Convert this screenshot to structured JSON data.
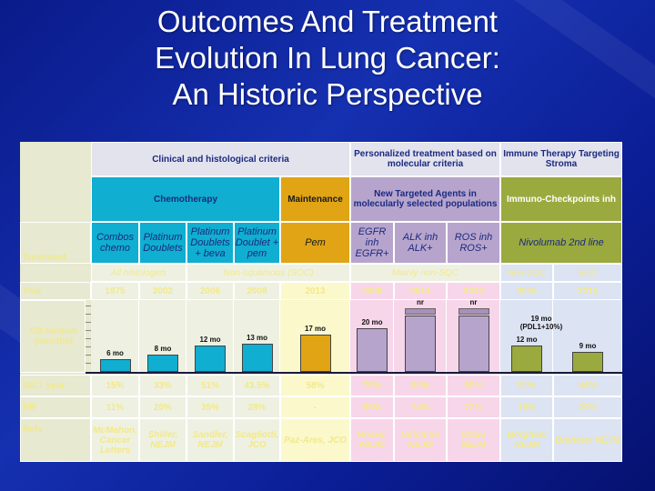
{
  "title": {
    "line1": "Outcomes And Treatment",
    "line2": "Evolution In Lung Cancer:",
    "line3": "An Historic Perspective"
  },
  "header": {
    "clinical": "Clinical and histological criteria",
    "personalized": "Personalized treatment based on molecular criteria",
    "immune": "Immune Therapy Targeting Stroma",
    "chemo": "Chemotherapy",
    "maintenance": "Maintenance",
    "targeted": "New Targeted Agents in molecularly selected populations",
    "checkpoint": "Immuno-Checkpoints inh"
  },
  "rows": {
    "treatment_label": "Treatment",
    "year_label": "Year",
    "os_label": "OS median (months)",
    "os1_label": "OS 1 year",
    "rr_label": "RR",
    "refs_label": "Refs"
  },
  "treatments": [
    "Combos chemo",
    "Platinum Doublets",
    "Platinum Doublets + beva",
    "Platinum Doublet + pem",
    "Pem",
    "EGFR inh EGFR+",
    "ALK inh ALK+",
    "ROS inh ROS+",
    "Nivolumab 2nd line"
  ],
  "nivolumab_sup": "nd",
  "histology": {
    "all": "All histologies",
    "nonsq": "Non-squamous (SOC)",
    "mainly": "Mainly non-SQC",
    "nonsqc": "Non-SQC",
    "sqc": "SQC"
  },
  "years": [
    "1975",
    "2002",
    "2006",
    "2008",
    "2013",
    "2009",
    "2014",
    "2014",
    "2015",
    "2015"
  ],
  "os_median": [
    "6 mo",
    "8 mo",
    "12 mo",
    "13 mo",
    "17 mo",
    "20 mo",
    "nr",
    "nr",
    "12 mo",
    "9 mo"
  ],
  "nivo_note": "19 mo (PDL1+10%)",
  "os1": [
    "15%",
    "33%",
    "51%",
    "43.5%",
    "58%",
    "75%",
    "60%",
    "85%",
    "51%",
    "44%"
  ],
  "rr": [
    "11%",
    "20%",
    "35%",
    "28%",
    "-",
    "58%",
    "74%",
    "72%",
    "19%",
    "20%"
  ],
  "refs": [
    "McMahon, Cancer Letters",
    "Shiller, NEJM",
    "Sandler, NEJM",
    "Scagliotti, JCO",
    "Paz-Ares, JCO",
    "Rosell, NEJM",
    "Solomon NEJM",
    "Shaw, NEJM",
    "Borghaei NEJM",
    "Brahmer NEJM"
  ],
  "chart_data": {
    "type": "bar",
    "categories": [
      "1975",
      "2002",
      "2006",
      "2008",
      "2013",
      "2009",
      "2014",
      "2014",
      "2015",
      "2015"
    ],
    "values": [
      6,
      8,
      12,
      13,
      17,
      20,
      null,
      null,
      12,
      9
    ]
  }
}
